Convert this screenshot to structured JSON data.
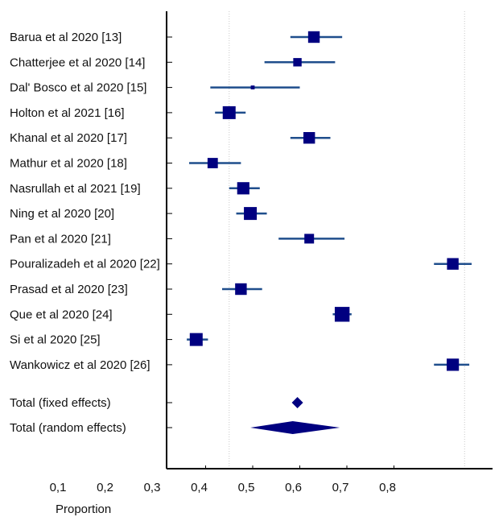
{
  "chart_data": {
    "type": "forest",
    "title": "",
    "xlabel": "Proportion",
    "ylabel": "",
    "xlim": [
      0.1,
      0.95
    ],
    "x_ticks": [
      "0,1",
      "0,2",
      "0,3",
      "0,4",
      "0,5",
      "0,6",
      "0,7",
      "0,8"
    ],
    "x_tick_values": [
      0.1,
      0.2,
      0.3,
      0.4,
      0.5,
      0.6,
      0.7,
      0.8
    ],
    "reference_lines": [
      0.45,
      0.95
    ],
    "grid": false,
    "colors": {
      "marker": "#000080",
      "ci_line": "#1f4e8c",
      "axis": "#000000",
      "refline": "#c8c8c8"
    },
    "studies": [
      {
        "label": "Barua et al 2020 [13]",
        "estimate": 0.63,
        "ci": [
          0.58,
          0.69
        ],
        "weight": 0.9
      },
      {
        "label": "Chatterjee et al 2020 [14]",
        "estimate": 0.595,
        "ci": [
          0.525,
          0.675
        ],
        "weight": 0.65
      },
      {
        "label": "Dal' Bosco et al 2020 [15]",
        "estimate": 0.5,
        "ci": [
          0.41,
          0.6
        ],
        "weight": 0.3
      },
      {
        "label": "Holton et al 2021 [16]",
        "estimate": 0.45,
        "ci": [
          0.42,
          0.485
        ],
        "weight": 1.0
      },
      {
        "label": "Khanal et al 2020 [17]",
        "estimate": 0.62,
        "ci": [
          0.58,
          0.665
        ],
        "weight": 0.9
      },
      {
        "label": "Mathur et al 2020 [18]",
        "estimate": 0.415,
        "ci": [
          0.365,
          0.475
        ],
        "weight": 0.8
      },
      {
        "label": "Nasrullah et al 2021 [19]",
        "estimate": 0.48,
        "ci": [
          0.45,
          0.515
        ],
        "weight": 0.95
      },
      {
        "label": "Ning et al 2020 [20]",
        "estimate": 0.495,
        "ci": [
          0.465,
          0.53
        ],
        "weight": 1.0
      },
      {
        "label": "Pan et al 2020 [21]",
        "estimate": 0.62,
        "ci": [
          0.555,
          0.695
        ],
        "weight": 0.75
      },
      {
        "label": "Pouralizadeh et al 2020 [22]",
        "estimate": 0.925,
        "ci": [
          0.885,
          0.965
        ],
        "weight": 0.9
      },
      {
        "label": "Prasad et al 2020 [23]",
        "estimate": 0.475,
        "ci": [
          0.435,
          0.52
        ],
        "weight": 0.9
      },
      {
        "label": "Que et al 2020 [24]",
        "estimate": 0.69,
        "ci": [
          0.67,
          0.71
        ],
        "weight": 1.15
      },
      {
        "label": "Si et al 2020 [25]",
        "estimate": 0.38,
        "ci": [
          0.36,
          0.405
        ],
        "weight": 1.0
      },
      {
        "label": "Wankowicz et al 2020 [26]",
        "estimate": 0.925,
        "ci": [
          0.885,
          0.96
        ],
        "weight": 0.95
      }
    ],
    "totals": [
      {
        "label": "Total (fixed effects)",
        "estimate": 0.595,
        "ci": [
          0.59,
          0.6
        ]
      },
      {
        "label": "Total (random effects)",
        "estimate": 0.585,
        "ci": [
          0.495,
          0.685
        ]
      }
    ]
  }
}
